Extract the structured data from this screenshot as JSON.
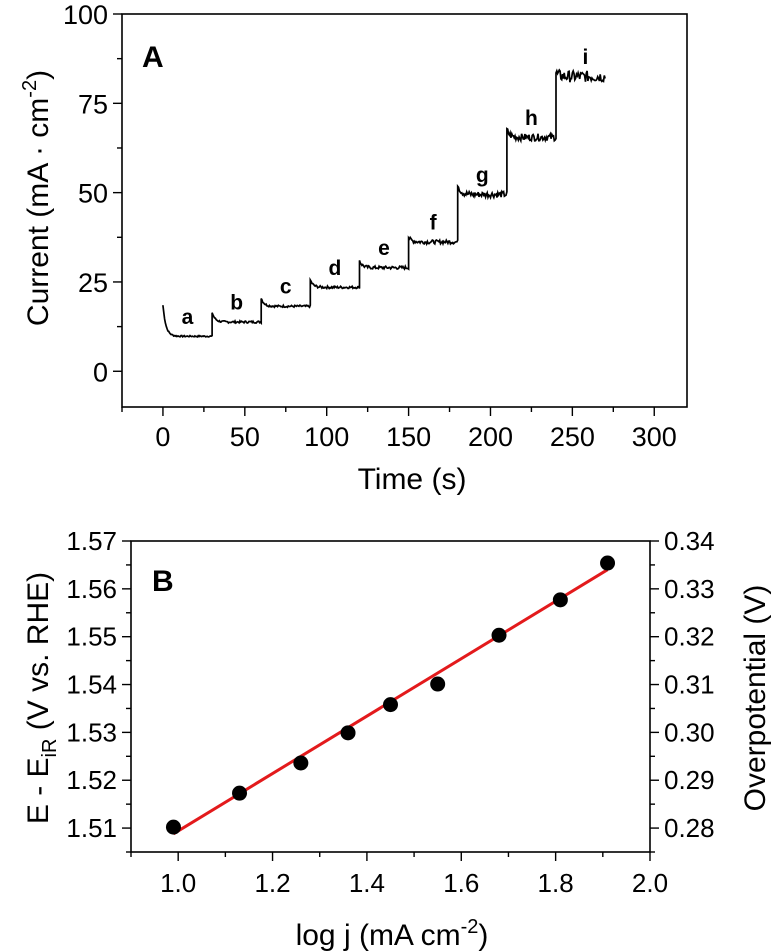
{
  "chart_data": [
    {
      "panel": "A",
      "type": "line",
      "panel_label": "A",
      "xlabel": "Time (s)",
      "ylabel_main": "Current (mA · cm",
      "ylabel_sup": "-2",
      "ylabel_close": ")",
      "xlim": [
        -25,
        320
      ],
      "ylim": [
        -10,
        100
      ],
      "xticks": [
        0,
        50,
        100,
        150,
        200,
        250,
        300
      ],
      "yticks": [
        0,
        25,
        50,
        75,
        100
      ],
      "steps": [
        {
          "label": "a",
          "t_start": 0,
          "t_end": 30,
          "start": 18.5,
          "level": 9.8,
          "noise": 0.2
        },
        {
          "label": "b",
          "t_start": 30,
          "t_end": 60,
          "start": 16.5,
          "level": 13.8,
          "noise": 0.3
        },
        {
          "label": "c",
          "t_start": 60,
          "t_end": 90,
          "start": 20.5,
          "level": 18.2,
          "noise": 0.3
        },
        {
          "label": "d",
          "t_start": 90,
          "t_end": 120,
          "start": 25.5,
          "level": 23.5,
          "noise": 0.35
        },
        {
          "label": "e",
          "t_start": 120,
          "t_end": 150,
          "start": 31,
          "level": 29,
          "noise": 0.45
        },
        {
          "label": "f",
          "t_start": 150,
          "t_end": 180,
          "start": 37.5,
          "level": 36.2,
          "noise": 0.55
        },
        {
          "label": "g",
          "t_start": 180,
          "t_end": 210,
          "start": 52.5,
          "level": 49.5,
          "noise": 0.9
        },
        {
          "label": "h",
          "t_start": 210,
          "t_end": 240,
          "start": 67.5,
          "level": 65.5,
          "noise": 1.0
        },
        {
          "label": "i",
          "t_start": 240,
          "t_end": 270,
          "start": 83.5,
          "level": 82.5,
          "noise": 1.6
        }
      ]
    },
    {
      "panel": "B",
      "type": "scatter",
      "panel_label": "B",
      "xlabel_main": "log j (mA cm",
      "xlabel_sup": "-2",
      "xlabel_close": ")",
      "ylabel_left_main": "E - E",
      "ylabel_left_sub": "iR",
      "ylabel_left_rest": " (V vs. RHE)",
      "ylabel_right": "Overpotential (V)",
      "xlim": [
        0.9,
        2.0
      ],
      "ylim": [
        1.505,
        1.57
      ],
      "xticks": [
        "1.0",
        "1.2",
        "1.4",
        "1.6",
        "1.8",
        "2.0"
      ],
      "yticks_left": [
        "1.51",
        "1.52",
        "1.53",
        "1.54",
        "1.55",
        "1.56",
        "1.57"
      ],
      "yticks_right": [
        "0.28",
        "0.29",
        "0.30",
        "0.31",
        "0.32",
        "0.33",
        "0.34"
      ],
      "points": [
        {
          "x": 0.99,
          "y": 1.5102
        },
        {
          "x": 1.13,
          "y": 1.5173
        },
        {
          "x": 1.26,
          "y": 1.5236
        },
        {
          "x": 1.36,
          "y": 1.5299
        },
        {
          "x": 1.45,
          "y": 1.5358
        },
        {
          "x": 1.55,
          "y": 1.5401
        },
        {
          "x": 1.68,
          "y": 1.5503
        },
        {
          "x": 1.81,
          "y": 1.5577
        },
        {
          "x": 1.91,
          "y": 1.5654
        }
      ],
      "fit": {
        "x0": 0.99,
        "y0": 1.5088,
        "x1": 1.91,
        "y1": 1.564,
        "color": "#e31a1c"
      },
      "marker_color": "#000000"
    }
  ]
}
